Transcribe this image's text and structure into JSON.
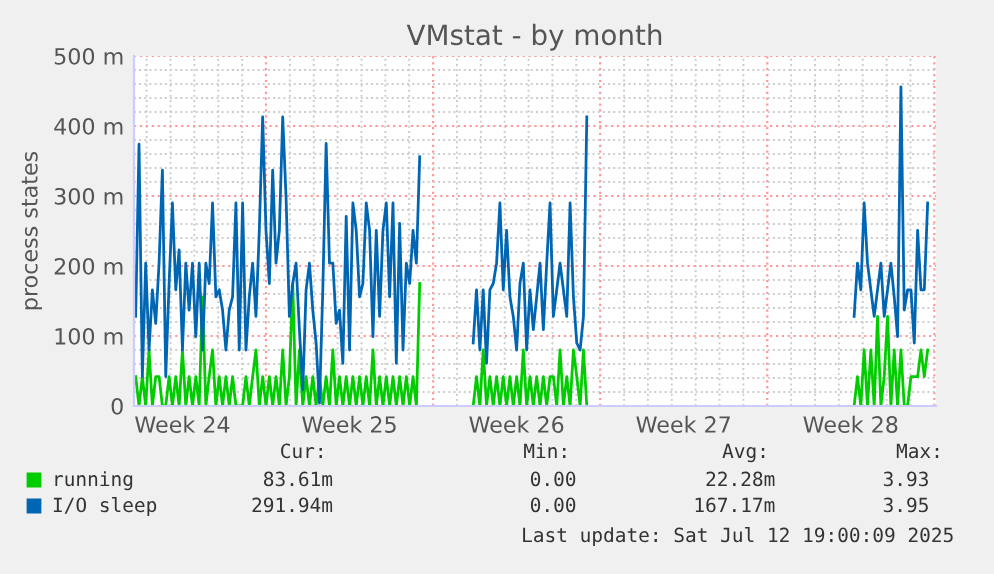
{
  "chart_data": {
    "type": "line",
    "title": "VMstat - by month",
    "ylabel": "process states",
    "ylim": [
      0,
      500
    ],
    "yticks": [
      0,
      {
        "value": 100,
        "label": "100 m"
      },
      {
        "value": 200,
        "label": "200 m"
      },
      {
        "value": 300,
        "label": "300 m"
      },
      {
        "value": 400,
        "label": "400 m"
      },
      {
        "value": 500,
        "label": "500 m"
      }
    ],
    "grid": true,
    "legend": "bottom",
    "line_style": "solid",
    "categories": [
      null,
      null,
      null,
      null,
      null,
      null,
      null,
      null,
      null,
      null,
      null,
      null,
      null,
      null,
      "Week 24",
      null,
      null,
      null,
      null,
      null,
      null,
      null,
      null,
      null,
      null,
      null,
      null,
      null,
      null,
      null,
      null,
      null,
      null,
      null,
      null,
      null,
      null,
      null,
      null,
      null,
      null,
      null,
      null,
      null,
      null,
      null,
      null,
      null,
      null,
      null,
      null,
      null,
      null,
      null,
      null,
      null,
      null,
      null,
      null,
      null,
      null,
      null,
      null,
      null,
      "Week 25",
      null,
      null,
      null,
      null,
      null,
      null,
      null,
      null,
      null,
      null,
      null,
      null,
      null,
      null,
      null,
      null,
      null,
      null,
      null,
      null,
      null,
      null,
      null,
      null,
      null,
      null,
      null,
      null,
      null,
      null,
      null,
      null,
      null,
      null,
      null,
      null,
      null,
      null,
      null,
      null,
      null,
      null,
      null,
      null,
      null,
      null,
      null,
      null,
      null,
      "Week 26",
      null,
      null,
      null,
      null,
      null,
      null,
      null,
      null,
      null,
      null,
      null,
      null,
      null,
      null,
      null,
      null,
      null,
      null,
      null,
      null,
      null,
      null,
      null,
      null,
      null,
      null,
      null,
      null,
      null,
      null,
      null,
      null,
      null,
      null,
      null,
      null,
      null,
      null,
      null,
      null,
      null,
      null,
      null,
      null,
      null,
      null,
      null,
      null,
      null,
      "Week 27",
      null,
      null,
      null,
      null,
      null,
      null,
      null,
      null,
      null,
      null,
      null,
      null,
      null,
      null,
      null,
      null,
      null,
      null,
      null,
      null,
      null,
      null,
      null,
      null,
      null,
      null,
      null,
      null,
      null,
      null,
      null,
      null,
      null,
      null,
      null,
      null,
      null,
      null,
      null,
      null,
      null,
      null,
      null,
      null,
      null,
      null,
      null,
      null,
      null,
      "Week 28",
      null,
      null,
      null,
      null,
      null,
      null,
      null,
      null,
      null,
      null,
      null,
      null,
      null,
      null,
      null,
      null,
      null,
      null,
      null,
      null,
      null,
      null,
      null,
      null,
      null
    ],
    "series": [
      {
        "name": "running",
        "color": "#00cc00",
        "values": [
          42,
          0,
          42,
          0,
          80,
          0,
          42,
          42,
          0,
          0,
          42,
          0,
          42,
          0,
          80,
          0,
          42,
          0,
          42,
          0,
          156,
          0,
          42,
          80,
          0,
          42,
          0,
          42,
          0,
          42,
          0,
          0,
          0,
          42,
          0,
          42,
          80,
          0,
          42,
          0,
          42,
          0,
          42,
          0,
          80,
          0,
          42,
          175,
          0,
          80,
          0,
          42,
          0,
          42,
          0,
          42,
          0,
          42,
          0,
          80,
          0,
          42,
          0,
          42,
          0,
          42,
          0,
          42,
          0,
          42,
          0,
          80,
          0,
          42,
          0,
          42,
          0,
          42,
          0,
          42,
          0,
          42,
          0,
          42,
          0,
          175,
          null,
          null,
          null,
          null,
          null,
          null,
          null,
          null,
          null,
          null,
          null,
          null,
          null,
          null,
          null,
          0,
          42,
          0,
          80,
          0,
          42,
          0,
          42,
          0,
          42,
          0,
          42,
          0,
          42,
          0,
          80,
          0,
          42,
          0,
          42,
          0,
          42,
          0,
          42,
          42,
          0,
          80,
          0,
          42,
          0,
          80,
          42,
          0,
          80,
          0,
          null,
          null,
          null,
          null,
          null,
          null,
          null,
          null,
          null,
          null,
          null,
          null,
          null,
          null,
          null,
          null,
          null,
          null,
          null,
          null,
          null,
          null,
          null,
          null,
          null,
          null,
          null,
          null,
          null,
          null,
          null,
          null,
          null,
          null,
          null,
          null,
          null,
          null,
          null,
          null,
          null,
          null,
          null,
          null,
          null,
          null,
          null,
          null,
          null,
          null,
          null,
          null,
          null,
          null,
          null,
          null,
          null,
          null,
          null,
          null,
          null,
          null,
          null,
          null,
          null,
          null,
          null,
          null,
          null,
          null,
          null,
          null,
          null,
          null,
          null,
          null,
          null,
          null,
          null,
          0,
          42,
          0,
          80,
          0,
          80,
          0,
          128,
          0,
          42,
          128,
          0,
          80,
          0,
          80,
          0,
          0,
          42,
          42,
          42,
          80,
          42,
          80,
          null,
          null
        ]
      },
      {
        "name": "I/O sleep",
        "color": "#0066b3",
        "values": [
          128,
          374,
          42,
          204,
          80,
          166,
          118,
          204,
          337,
          42,
          175,
          290,
          166,
          223,
          80,
          204,
          137,
          204,
          99,
          204,
          80,
          204,
          175,
          290,
          156,
          166,
          137,
          80,
          137,
          156,
          290,
          80,
          290,
          80,
          156,
          204,
          128,
          251,
          413,
          251,
          175,
          337,
          204,
          251,
          413,
          299,
          128,
          175,
          204,
          109,
          23,
          166,
          204,
          137,
          90,
          4,
          166,
          375,
          204,
          204,
          118,
          137,
          61,
          271,
          80,
          290,
          251,
          156,
          175,
          290,
          251,
          99,
          251,
          128,
          251,
          290,
          156,
          290,
          61,
          261,
          80,
          204,
          175,
          251,
          204,
          356,
          null,
          null,
          null,
          null,
          null,
          null,
          null,
          null,
          null,
          null,
          null,
          null,
          null,
          null,
          null,
          90,
          166,
          80,
          166,
          61,
          166,
          175,
          204,
          290,
          166,
          251,
          156,
          128,
          80,
          175,
          204,
          80,
          166,
          109,
          156,
          204,
          109,
          204,
          290,
          128,
          166,
          204,
          166,
          128,
          290,
          156,
          90,
          80,
          128,
          413,
          null,
          null,
          null,
          null,
          null,
          null,
          null,
          null,
          null,
          null,
          null,
          null,
          null,
          null,
          null,
          null,
          null,
          null,
          null,
          null,
          null,
          null,
          null,
          null,
          null,
          null,
          null,
          null,
          null,
          null,
          null,
          null,
          null,
          null,
          null,
          null,
          null,
          null,
          null,
          null,
          null,
          null,
          null,
          null,
          null,
          null,
          null,
          null,
          null,
          null,
          null,
          null,
          null,
          null,
          null,
          null,
          null,
          null,
          null,
          null,
          null,
          null,
          null,
          null,
          null,
          null,
          null,
          null,
          null,
          null,
          null,
          null,
          null,
          null,
          null,
          null,
          null,
          null,
          null,
          128,
          204,
          166,
          290,
          204,
          166,
          128,
          166,
          204,
          128,
          166,
          204,
          156,
          99,
          456,
          137,
          166,
          166,
          90,
          251,
          166,
          166,
          290,
          null,
          null
        ]
      }
    ],
    "annotations": [
      "Cur:",
      "Min:",
      "Avg:",
      "Max:",
      "83.61m",
      "0.00",
      "22.28m",
      "3.93",
      "291.94m",
      "0.00",
      "167.17m",
      "3.95",
      "Last update: Sat Jul 12 19:00:09 2025"
    ]
  }
}
